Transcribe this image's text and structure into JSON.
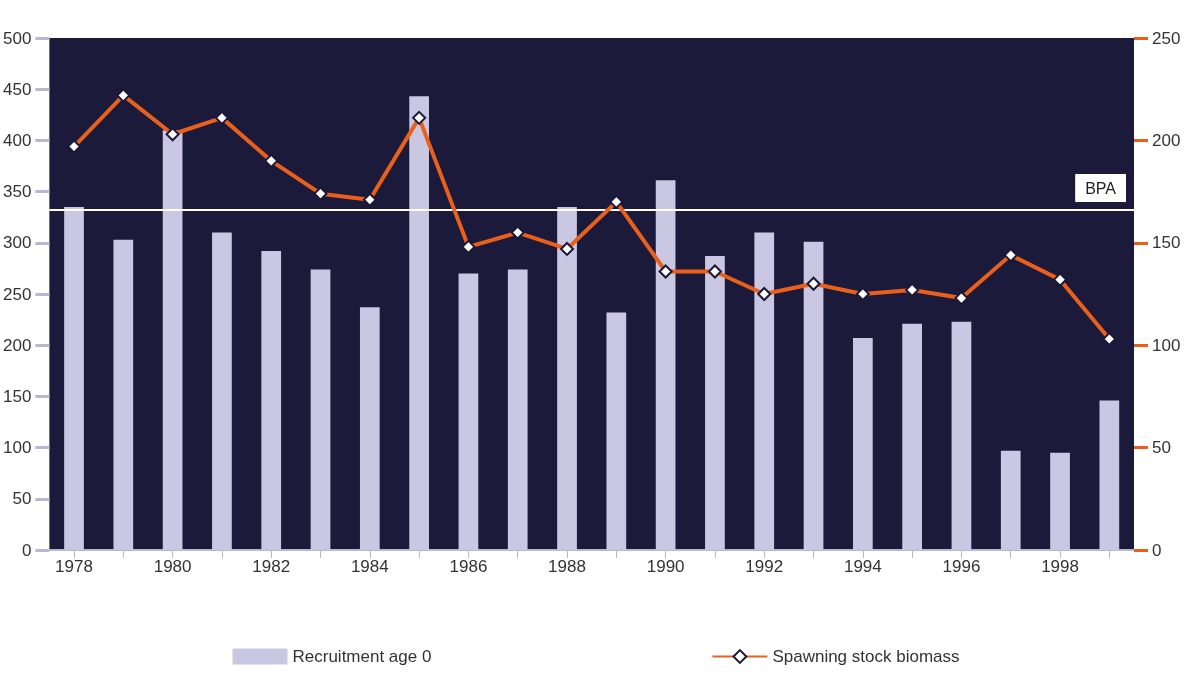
{
  "chart_data": {
    "type": "bar",
    "categories": [
      "1978",
      null,
      "1980",
      null,
      "1982",
      null,
      "1984",
      null,
      "1986",
      null,
      "1988",
      null,
      "1990",
      null,
      "1992",
      null,
      "1994",
      null,
      "1996",
      null,
      "1998",
      null
    ],
    "series": [
      {
        "name": "Recruitment age 0",
        "color": "#c9c7e2",
        "values": [
          335,
          303,
          410,
          310,
          292,
          274,
          237,
          443,
          270,
          274,
          335,
          232,
          361,
          287,
          310,
          301,
          207,
          221,
          223,
          97,
          95,
          146
        ]
      },
      {
        "name": "Spawning stock biomass",
        "type": "line",
        "axis": "y2",
        "color": "#e8601c",
        "marker": "diamond",
        "values": [
          197,
          222,
          203,
          211,
          190,
          174,
          171,
          211,
          148,
          155,
          147,
          170,
          136,
          136,
          125,
          130,
          125,
          127,
          123,
          144,
          132,
          103
        ]
      }
    ],
    "ylim": [
      0,
      500
    ],
    "yticks": [
      0,
      50,
      100,
      150,
      200,
      250,
      300,
      350,
      400,
      450,
      500
    ],
    "y2lim": [
      0,
      250
    ],
    "y2ticks": [
      0,
      50,
      100,
      150,
      200,
      250
    ],
    "ref_lines": [
      {
        "axis": "y2",
        "value": 166,
        "label": "BPA",
        "color": "#ffffff"
      }
    ],
    "grid": false,
    "legend": "bottom"
  }
}
